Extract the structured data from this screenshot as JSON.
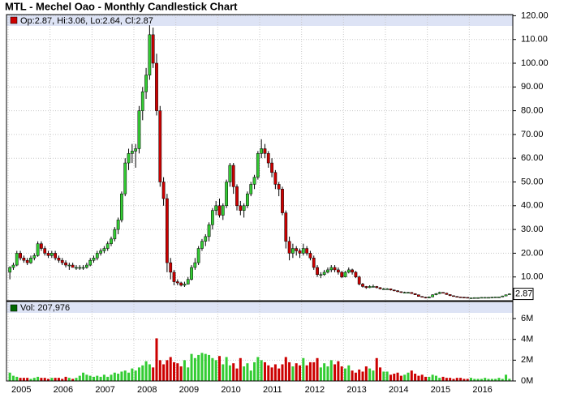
{
  "chart_data": [
    {
      "type": "candlestick",
      "title": "MTL - Mechel Oao - Monthly Candlestick Chart",
      "info_label": "Op:2.87, Hi:3.06, Lo:2.64, Cl:2.87",
      "up_color": "#33cc33",
      "down_color": "#cc0000",
      "grid": true,
      "ylim": [
        0,
        120
      ],
      "yticks": [
        {
          "value": 10,
          "label": "10.00"
        },
        {
          "value": 20,
          "label": "20.00"
        },
        {
          "value": 30,
          "label": "30.00"
        },
        {
          "value": 40,
          "label": "40.00"
        },
        {
          "value": 50,
          "label": "50.00"
        },
        {
          "value": 60,
          "label": "60.00"
        },
        {
          "value": 70,
          "label": "70.00"
        },
        {
          "value": 80,
          "label": "80.00"
        },
        {
          "value": 90,
          "label": "90.00"
        },
        {
          "value": 100,
          "label": "100.00"
        },
        {
          "value": 110,
          "label": "110.00"
        },
        {
          "value": 120,
          "label": "120.00"
        }
      ],
      "candles": [
        [
          12,
          14.5,
          9,
          14
        ],
        [
          14,
          16,
          13,
          15
        ],
        [
          15,
          21,
          14.5,
          20
        ],
        [
          20,
          21,
          17,
          18
        ],
        [
          18,
          19,
          16,
          17
        ],
        [
          17,
          18,
          15,
          16
        ],
        [
          16,
          19,
          15.5,
          18
        ],
        [
          18,
          20,
          17,
          19
        ],
        [
          19,
          25,
          18.5,
          24
        ],
        [
          24,
          25,
          21,
          22
        ],
        [
          22,
          23,
          19,
          20
        ],
        [
          20,
          21,
          18,
          19
        ],
        [
          19,
          21,
          18,
          20
        ],
        [
          20,
          21,
          17,
          18
        ],
        [
          18,
          19,
          16,
          17
        ],
        [
          17,
          18,
          15,
          16
        ],
        [
          16,
          17,
          14,
          15
        ],
        [
          15,
          16,
          13,
          15
        ],
        [
          15,
          16,
          14,
          14
        ],
        [
          14,
          15,
          13,
          14
        ],
        [
          14,
          15,
          13,
          14
        ],
        [
          14,
          15,
          13,
          14
        ],
        [
          14,
          16,
          13.5,
          15
        ],
        [
          15,
          18,
          14.5,
          17
        ],
        [
          17,
          19,
          16,
          18
        ],
        [
          18,
          21,
          17,
          20
        ],
        [
          20,
          22,
          19,
          21
        ],
        [
          21,
          23,
          20,
          22
        ],
        [
          22,
          25,
          21,
          24
        ],
        [
          24,
          27,
          23,
          26
        ],
        [
          26,
          31,
          25,
          30
        ],
        [
          30,
          35,
          28,
          34
        ],
        [
          34,
          46,
          33,
          45
        ],
        [
          45,
          60,
          44,
          58
        ],
        [
          58,
          64,
          55,
          62
        ],
        [
          62,
          66,
          58,
          63
        ],
        [
          63,
          66,
          56,
          64
        ],
        [
          64,
          82,
          62,
          80
        ],
        [
          80,
          90,
          76,
          88
        ],
        [
          88,
          98,
          85,
          95
        ],
        [
          95,
          116,
          93,
          112
        ],
        [
          112,
          115,
          98,
          100
        ],
        [
          100,
          104,
          78,
          80
        ],
        [
          80,
          82,
          48,
          50
        ],
        [
          50,
          52,
          40,
          43
        ],
        [
          43,
          45,
          12,
          16
        ],
        [
          16,
          18,
          9,
          12
        ],
        [
          12,
          13,
          6.5,
          8
        ],
        [
          8,
          9,
          6.5,
          7.5
        ],
        [
          7.5,
          8,
          6,
          6.5
        ],
        [
          6.5,
          8,
          5.8,
          7
        ],
        [
          7,
          10,
          6.8,
          9
        ],
        [
          9,
          15,
          8.5,
          14
        ],
        [
          14,
          18,
          13,
          16
        ],
        [
          16,
          23,
          15,
          22
        ],
        [
          22,
          26,
          21,
          25
        ],
        [
          25,
          28,
          23,
          27
        ],
        [
          27,
          33,
          25,
          32
        ],
        [
          32,
          39,
          30,
          38
        ],
        [
          38,
          42,
          36,
          40
        ],
        [
          40,
          43,
          35,
          36
        ],
        [
          36,
          41,
          34,
          40
        ],
        [
          40,
          51,
          39,
          50
        ],
        [
          50,
          58,
          48,
          57
        ],
        [
          57,
          58,
          45,
          48
        ],
        [
          48,
          49,
          38,
          40
        ],
        [
          40,
          42,
          36,
          38
        ],
        [
          38,
          41,
          35,
          40
        ],
        [
          40,
          46,
          39,
          45
        ],
        [
          45,
          50,
          44,
          49
        ],
        [
          49,
          53,
          47,
          52
        ],
        [
          52,
          63,
          51,
          62
        ],
        [
          62,
          68,
          60,
          64
        ],
        [
          64,
          66,
          60,
          62
        ],
        [
          62,
          63,
          56,
          58
        ],
        [
          58,
          60,
          52,
          54
        ],
        [
          54,
          55,
          47,
          49
        ],
        [
          49,
          50,
          44,
          47
        ],
        [
          47,
          48,
          36,
          37
        ],
        [
          37,
          38,
          22,
          25
        ],
        [
          25,
          27,
          17,
          20
        ],
        [
          20,
          24,
          18,
          22
        ],
        [
          22,
          23,
          19,
          21
        ],
        [
          21,
          22,
          18,
          20
        ],
        [
          20,
          24,
          19,
          22
        ],
        [
          22,
          23,
          19,
          20
        ],
        [
          20,
          21,
          17,
          18
        ],
        [
          18,
          19,
          13,
          14
        ],
        [
          14,
          15,
          10,
          11
        ],
        [
          11,
          12,
          9.5,
          11
        ],
        [
          11,
          13,
          10.5,
          12
        ],
        [
          12,
          14,
          11.5,
          13
        ],
        [
          13,
          15,
          12,
          14
        ],
        [
          14,
          15,
          12,
          13
        ],
        [
          13,
          14,
          11,
          12
        ],
        [
          12,
          12.5,
          9.5,
          10
        ],
        [
          10,
          12.5,
          9.8,
          12
        ],
        [
          12,
          14,
          11.5,
          13
        ],
        [
          13,
          13.5,
          11,
          12
        ],
        [
          12,
          12.5,
          9.5,
          10
        ],
        [
          10,
          10.5,
          6.5,
          7
        ],
        [
          7,
          7.5,
          5.5,
          6
        ],
        [
          6,
          6.2,
          5,
          5.5
        ],
        [
          5.5,
          6.5,
          5.3,
          6
        ],
        [
          6,
          6.8,
          5.6,
          6
        ],
        [
          6,
          6.2,
          5.2,
          5.5
        ],
        [
          5.5,
          5.7,
          4.8,
          5
        ],
        [
          5,
          5.4,
          4.6,
          5
        ],
        [
          5,
          5.3,
          4.7,
          5
        ],
        [
          5,
          5.1,
          4.3,
          4.5
        ],
        [
          4.5,
          4.7,
          4,
          4.2
        ],
        [
          4.2,
          4.4,
          3.6,
          3.8
        ],
        [
          3.8,
          3.9,
          3.3,
          3.5
        ],
        [
          3.5,
          3.8,
          3.3,
          3.5
        ],
        [
          3.5,
          3.7,
          3.2,
          3.5
        ],
        [
          3.5,
          3.6,
          2.9,
          3
        ],
        [
          3,
          3.1,
          2.4,
          2.5
        ],
        [
          2.5,
          2.6,
          1.7,
          1.8
        ],
        [
          1.8,
          1.9,
          1.4,
          1.5
        ],
        [
          1.5,
          1.6,
          1,
          1.2
        ],
        [
          1.2,
          1.8,
          1.1,
          1.6
        ],
        [
          1.6,
          2.7,
          1.5,
          2.5
        ],
        [
          2.5,
          3.2,
          2.3,
          3
        ],
        [
          3,
          3.8,
          2.8,
          3.5
        ],
        [
          3.5,
          3.6,
          3.1,
          3.2
        ],
        [
          3.2,
          3.3,
          2.5,
          2.6
        ],
        [
          2.6,
          2.7,
          2,
          2.1
        ],
        [
          2.1,
          2.2,
          1.7,
          1.8
        ],
        [
          1.8,
          1.9,
          1.5,
          1.6
        ],
        [
          1.6,
          1.7,
          1.4,
          1.5
        ],
        [
          1.5,
          1.6,
          1.3,
          1.4
        ],
        [
          1.4,
          1.5,
          1.1,
          1.2
        ],
        [
          1.2,
          1.3,
          1.1,
          1.2
        ],
        [
          1.2,
          1.4,
          1.1,
          1.3
        ],
        [
          1.3,
          1.4,
          1.2,
          1.3
        ],
        [
          1.3,
          1.5,
          1.2,
          1.4
        ],
        [
          1.4,
          1.5,
          1.3,
          1.4
        ],
        [
          1.4,
          1.5,
          1.3,
          1.4
        ],
        [
          1.4,
          1.6,
          1.3,
          1.5
        ],
        [
          1.5,
          1.7,
          1.4,
          1.6
        ],
        [
          1.6,
          1.7,
          1.5,
          1.6
        ],
        [
          1.6,
          2.1,
          1.5,
          2
        ],
        [
          2,
          2.6,
          1.9,
          2.5
        ],
        [
          2.87,
          3.06,
          2.64,
          2.87
        ]
      ]
    },
    {
      "type": "bar",
      "info_label": "Vol: 207,976",
      "grid": true,
      "ylim": [
        0,
        7.6
      ],
      "yticks": [
        {
          "value": 0,
          "label": "0M"
        },
        {
          "value": 2,
          "label": "2M"
        },
        {
          "value": 4,
          "label": "4M"
        },
        {
          "value": 6,
          "label": "6M"
        }
      ],
      "categories": [
        "2005",
        null,
        null,
        null,
        null,
        null,
        null,
        null,
        null,
        null,
        null,
        null,
        "2006",
        null,
        null,
        null,
        null,
        null,
        null,
        null,
        null,
        null,
        null,
        null,
        "2007",
        null,
        null,
        null,
        null,
        null,
        null,
        null,
        null,
        null,
        null,
        null,
        "2008",
        null,
        null,
        null,
        null,
        null,
        null,
        null,
        null,
        null,
        null,
        null,
        "2009",
        null,
        null,
        null,
        null,
        null,
        null,
        null,
        null,
        null,
        null,
        null,
        "2010",
        null,
        null,
        null,
        null,
        null,
        null,
        null,
        null,
        null,
        null,
        null,
        "2011",
        null,
        null,
        null,
        null,
        null,
        null,
        null,
        null,
        null,
        null,
        null,
        "2012",
        null,
        null,
        null,
        null,
        null,
        null,
        null,
        null,
        null,
        null,
        null,
        "2013",
        null,
        null,
        null,
        null,
        null,
        null,
        null,
        null,
        null,
        null,
        null,
        "2014",
        null,
        null,
        null,
        null,
        null,
        null,
        null,
        null,
        null,
        null,
        null,
        "2015",
        null,
        null,
        null,
        null,
        null,
        null,
        null,
        null,
        null,
        null,
        null,
        "2016",
        null,
        null,
        null,
        null,
        null,
        null,
        null,
        null,
        null,
        null,
        null
      ],
      "values": [
        0.8,
        0.5,
        0.4,
        0.3,
        0.3,
        0.3,
        0.2,
        0.3,
        0.4,
        0.3,
        0.3,
        0.2,
        0.3,
        0.3,
        0.3,
        0.2,
        0.4,
        0.3,
        0.2,
        0.3,
        0.5,
        0.8,
        0.6,
        0.5,
        0.4,
        0.5,
        0.4,
        0.6,
        0.4,
        0.6,
        0.8,
        0.7,
        0.9,
        1.0,
        0.8,
        1.2,
        1.0,
        1.3,
        1.5,
        1.9,
        1.6,
        1.3,
        4.1,
        2.0,
        1.6,
        2.0,
        2.3,
        1.8,
        1.7,
        1.4,
        2.0,
        1.3,
        2.6,
        2.2,
        2.5,
        2.7,
        2.6,
        2.5,
        2.2,
        2.0,
        2.4,
        1.6,
        2.3,
        1.5,
        1.7,
        1.2,
        2.2,
        1.4,
        1.7,
        1.0,
        1.8,
        2.3,
        2.0,
        1.8,
        1.5,
        1.3,
        1.6,
        1.2,
        1.6,
        2.3,
        1.8,
        1.4,
        1.7,
        1.5,
        2.2,
        1.5,
        1.8,
        1.8,
        2.2,
        1.3,
        1.7,
        1.4,
        2.0,
        1.6,
        1.9,
        1.4,
        1.2,
        1.5,
        1.0,
        0.8,
        1.1,
        0.9,
        1.4,
        1.2,
        1.0,
        2.2,
        1.3,
        0.9,
        0.9,
        0.6,
        0.7,
        0.8,
        0.5,
        0.6,
        0.8,
        1.0,
        0.7,
        0.5,
        0.6,
        0.4,
        0.4,
        0.6,
        0.5,
        0.3,
        0.4,
        0.3,
        0.3,
        0.2,
        0.3,
        0.3,
        0.2,
        0.2,
        0.3,
        0.2,
        0.2,
        0.2,
        0.3,
        0.2,
        0.2,
        0.2,
        0.3,
        0.2,
        0.6,
        0.207976
      ]
    }
  ]
}
